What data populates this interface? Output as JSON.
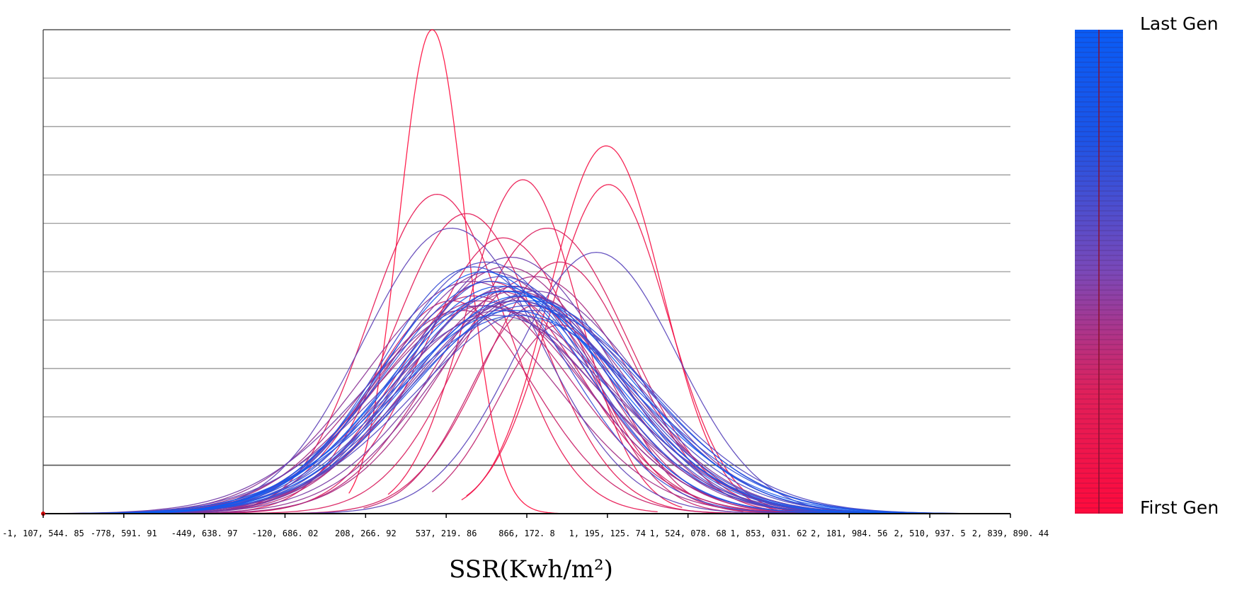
{
  "chart_data": {
    "type": "line",
    "title": "",
    "xlabel": "SSR(Kwh/m²)",
    "ylabel": "",
    "xlim": [
      -1107544.85,
      2839890.44
    ],
    "ylim": [
      0,
      10
    ],
    "grid": true,
    "x_ticks": [
      -1107544.85,
      -778591.91,
      -449638.97,
      -120686.02,
      208266.92,
      537219.86,
      866172.8,
      1195125.74,
      1524078.68,
      1853031.62,
      2181984.56,
      2510937.5,
      2839890.44
    ],
    "x_tick_labels": [
      "-1, 107, 544. 85",
      "-778, 591. 91",
      "-449, 638. 97",
      "-120, 686. 02",
      "208, 266. 92",
      "537, 219. 86",
      "866, 172. 8",
      "1, 195, 125. 74",
      "1, 524, 078. 68",
      "1, 853, 031. 62",
      "2, 181, 984. 56",
      "2, 510, 937. 5",
      "2, 839, 890. 44"
    ],
    "legend": {
      "placement": "right",
      "top_label": "Last Gen",
      "bottom_label": "First Gen",
      "top_color": "#0a5cf5",
      "bottom_color": "#ff0a3c"
    },
    "series_color_scale": [
      "#ff0a3c",
      "#0a5cf5"
    ],
    "series": [
      {
        "gen": 0.0,
        "mean": 480000,
        "sd": 135000,
        "peak": 10.0,
        "x_min": 140000,
        "x_max": 1050000
      },
      {
        "gen": 0.04,
        "mean": 1190000,
        "sd": 230000,
        "peak": 7.6,
        "x_min": 600000,
        "x_max": 1900000
      },
      {
        "gen": 0.06,
        "mean": 1200000,
        "sd": 240000,
        "peak": 6.8,
        "x_min": 620000,
        "x_max": 1950000
      },
      {
        "gen": 0.08,
        "mean": 850000,
        "sd": 230000,
        "peak": 6.9,
        "x_min": 300000,
        "x_max": 1500000
      },
      {
        "gen": 0.1,
        "mean": 500000,
        "sd": 280000,
        "peak": 6.6,
        "x_min": -300000,
        "x_max": 1400000
      },
      {
        "gen": 0.12,
        "mean": 620000,
        "sd": 300000,
        "peak": 6.2,
        "x_min": -400000,
        "x_max": 1700000
      },
      {
        "gen": 0.14,
        "mean": 770000,
        "sd": 320000,
        "peak": 5.7,
        "x_min": -500000,
        "x_max": 1900000
      },
      {
        "gen": 0.16,
        "mean": 950000,
        "sd": 330000,
        "peak": 5.9,
        "x_min": -400000,
        "x_max": 2100000
      },
      {
        "gen": 0.18,
        "mean": 1000000,
        "sd": 300000,
        "peak": 5.2,
        "x_min": -200000,
        "x_max": 2000000
      },
      {
        "gen": 0.2,
        "mean": 710000,
        "sd": 370000,
        "peak": 4.8,
        "x_min": -700000,
        "x_max": 2100000
      },
      {
        "gen": 0.22,
        "mean": 560000,
        "sd": 330000,
        "peak": 4.4,
        "x_min": -800000,
        "x_max": 1800000
      },
      {
        "gen": 0.24,
        "mean": 900000,
        "sd": 260000,
        "peak": 4.3,
        "x_min": 200000,
        "x_max": 1700000
      },
      {
        "gen": 0.26,
        "mean": 1000000,
        "sd": 250000,
        "peak": 3.9,
        "x_min": 480000,
        "x_max": 1750000
      },
      {
        "gen": 0.28,
        "mean": 650000,
        "sd": 400000,
        "peak": 4.5,
        "x_min": -900000,
        "x_max": 2200000
      },
      {
        "gen": 0.3,
        "mean": 820000,
        "sd": 350000,
        "peak": 4.7,
        "x_min": -700000,
        "x_max": 2200000
      },
      {
        "gen": 0.32,
        "mean": 750000,
        "sd": 380000,
        "peak": 4.6,
        "x_min": -900000,
        "x_max": 2300000
      },
      {
        "gen": 0.34,
        "mean": 680000,
        "sd": 420000,
        "peak": 4.4,
        "x_min": -1000000,
        "x_max": 2400000
      },
      {
        "gen": 0.36,
        "mean": 900000,
        "sd": 380000,
        "peak": 4.9,
        "x_min": -700000,
        "x_max": 2400000
      },
      {
        "gen": 0.38,
        "mean": 600000,
        "sd": 400000,
        "peak": 4.2,
        "x_min": -1000000,
        "x_max": 2200000
      },
      {
        "gen": 0.4,
        "mean": 780000,
        "sd": 400000,
        "peak": 5.1,
        "x_min": -900000,
        "x_max": 2400000
      },
      {
        "gen": 0.42,
        "mean": 820000,
        "sd": 420000,
        "peak": 4.6,
        "x_min": -1000000,
        "x_max": 2500000
      },
      {
        "gen": 0.44,
        "mean": 700000,
        "sd": 450000,
        "peak": 4.3,
        "x_min": -1100000,
        "x_max": 2500000
      },
      {
        "gen": 0.46,
        "mean": 880000,
        "sd": 400000,
        "peak": 4.5,
        "x_min": -800000,
        "x_max": 2500000
      },
      {
        "gen": 0.48,
        "mean": 640000,
        "sd": 430000,
        "peak": 4.8,
        "x_min": -1100000,
        "x_max": 2400000
      },
      {
        "gen": 0.5,
        "mean": 760000,
        "sd": 460000,
        "peak": 4.2,
        "x_min": -1100000,
        "x_max": 2600000
      },
      {
        "gen": 0.52,
        "mean": 830000,
        "sd": 440000,
        "peak": 4.4,
        "x_min": -1100000,
        "x_max": 2600000
      },
      {
        "gen": 0.54,
        "mean": 720000,
        "sd": 420000,
        "peak": 5.0,
        "x_min": -1100000,
        "x_max": 2500000
      },
      {
        "gen": 0.56,
        "mean": 900000,
        "sd": 430000,
        "peak": 4.6,
        "x_min": -900000,
        "x_max": 2700000
      },
      {
        "gen": 0.58,
        "mean": 680000,
        "sd": 470000,
        "peak": 4.3,
        "x_min": -1100000,
        "x_max": 2600000
      },
      {
        "gen": 0.6,
        "mean": 800000,
        "sd": 400000,
        "peak": 5.3,
        "x_min": -1000000,
        "x_max": 2500000
      },
      {
        "gen": 0.62,
        "mean": 860000,
        "sd": 450000,
        "peak": 4.5,
        "x_min": -1000000,
        "x_max": 2700000
      },
      {
        "gen": 0.64,
        "mean": 740000,
        "sd": 480000,
        "peak": 4.1,
        "x_min": -1100000,
        "x_max": 2700000
      },
      {
        "gen": 0.66,
        "mean": 560000,
        "sd": 360000,
        "peak": 5.9,
        "x_min": -1000000,
        "x_max": 2000000
      },
      {
        "gen": 0.68,
        "mean": 1150000,
        "sd": 330000,
        "peak": 5.4,
        "x_min": -300000,
        "x_max": 2600000
      },
      {
        "gen": 0.7,
        "mean": 800000,
        "sd": 430000,
        "peak": 4.7,
        "x_min": -1100000,
        "x_max": 2700000
      },
      {
        "gen": 0.72,
        "mean": 900000,
        "sd": 480000,
        "peak": 4.2,
        "x_min": -1000000,
        "x_max": 2800000
      },
      {
        "gen": 0.74,
        "mean": 700000,
        "sd": 400000,
        "peak": 5.2,
        "x_min": -1100000,
        "x_max": 2500000
      },
      {
        "gen": 0.76,
        "mean": 820000,
        "sd": 460000,
        "peak": 4.4,
        "x_min": -1100000,
        "x_max": 2800000
      },
      {
        "gen": 0.78,
        "mean": 760000,
        "sd": 420000,
        "peak": 4.9,
        "x_min": -1100000,
        "x_max": 2700000
      },
      {
        "gen": 0.8,
        "mean": 870000,
        "sd": 480000,
        "peak": 4.3,
        "x_min": -1000000,
        "x_max": 2800000
      },
      {
        "gen": 0.82,
        "mean": 650000,
        "sd": 380000,
        "peak": 5.1,
        "x_min": -1100000,
        "x_max": 2400000
      },
      {
        "gen": 0.84,
        "mean": 790000,
        "sd": 450000,
        "peak": 4.6,
        "x_min": -1100000,
        "x_max": 2800000
      },
      {
        "gen": 0.86,
        "mean": 830000,
        "sd": 500000,
        "peak": 4.1,
        "x_min": -1100000,
        "x_max": 2800000
      },
      {
        "gen": 0.88,
        "mean": 720000,
        "sd": 430000,
        "peak": 4.8,
        "x_min": -1100000,
        "x_max": 2700000
      },
      {
        "gen": 0.9,
        "mean": 880000,
        "sd": 470000,
        "peak": 4.4,
        "x_min": -1000000,
        "x_max": 2800000
      },
      {
        "gen": 0.92,
        "mean": 760000,
        "sd": 440000,
        "peak": 4.7,
        "x_min": -1100000,
        "x_max": 2800000
      },
      {
        "gen": 0.94,
        "mean": 810000,
        "sd": 490000,
        "peak": 4.2,
        "x_min": -1100000,
        "x_max": 2800000
      },
      {
        "gen": 0.96,
        "mean": 690000,
        "sd": 410000,
        "peak": 5.0,
        "x_min": -1100000,
        "x_max": 2600000
      },
      {
        "gen": 0.98,
        "mean": 840000,
        "sd": 460000,
        "peak": 4.5,
        "x_min": -1100000,
        "x_max": 2800000
      },
      {
        "gen": 1.0,
        "mean": 770000,
        "sd": 450000,
        "peak": 4.6,
        "x_min": -1100000,
        "x_max": 2800000
      }
    ]
  }
}
